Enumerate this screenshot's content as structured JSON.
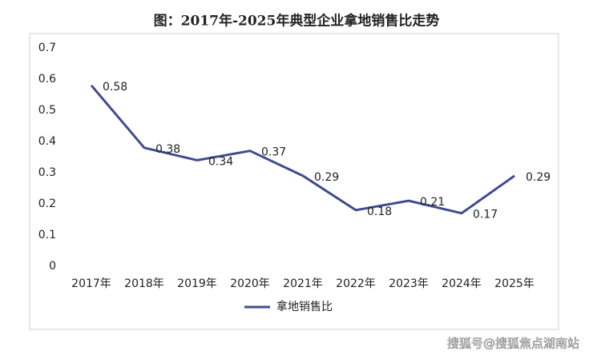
{
  "chart_data": {
    "type": "line",
    "title": "图：2017年-2025年典型企业拿地销售比走势",
    "categories": [
      "2017年",
      "2018年",
      "2019年",
      "2020年",
      "2021年",
      "2022年",
      "2023年",
      "2024年",
      "2025年"
    ],
    "series": [
      {
        "name": "拿地销售比",
        "color": "#414c8e",
        "values": [
          0.58,
          0.38,
          0.34,
          0.37,
          0.29,
          0.18,
          0.21,
          0.17,
          0.29
        ]
      }
    ],
    "ylim": [
      0,
      0.7
    ],
    "yticks": [
      0,
      0.1,
      0.2,
      0.3,
      0.4,
      0.5,
      0.6,
      0.7
    ],
    "grid": false,
    "legend": "bottom",
    "data_labels": true,
    "watermark": "搜狐号@搜狐焦点湖南站"
  }
}
